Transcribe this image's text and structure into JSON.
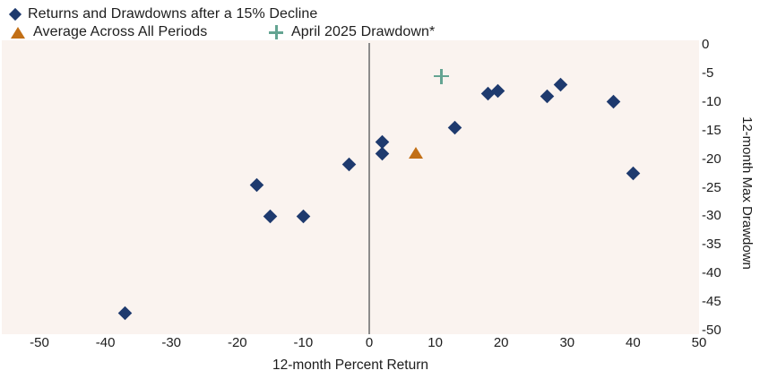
{
  "legend": {
    "returns_label": "Returns and Drawdowns after a 15% Decline",
    "average_label": "Average Across All Periods",
    "april_label": "April 2025 Drawdown*"
  },
  "colors": {
    "navy": "#1e3a6e",
    "orange": "#c26f16",
    "teal": "#64a492",
    "plot_background": "#faf3ef",
    "axis_line": "#8c8c8c",
    "text": "#1d1d1d"
  },
  "chart_data": {
    "type": "scatter",
    "title": "",
    "xlabel": "12-month Percent Return",
    "ylabel": "12-month Max Drawdown",
    "xlim": [
      -50,
      50
    ],
    "ylim": [
      -50,
      0
    ],
    "x_ticks": [
      -50,
      -40,
      -30,
      -20,
      -10,
      0,
      10,
      20,
      30,
      40,
      50
    ],
    "y_ticks": [
      0,
      -5,
      -10,
      -15,
      -20,
      -25,
      -30,
      -35,
      -40,
      -45,
      -50
    ],
    "grid": false,
    "legend_position": "top-left",
    "zero_x_reference_line": true,
    "series": [
      {
        "name": "Returns and Drawdowns after a 15% Decline",
        "marker": "diamond",
        "color": "#1e3a6e",
        "points": [
          [
            -37,
            -47
          ],
          [
            -17,
            -24.5
          ],
          [
            -15,
            -30
          ],
          [
            -10,
            -30
          ],
          [
            -3,
            -21
          ],
          [
            2,
            -17
          ],
          [
            2,
            -19
          ],
          [
            13,
            -14.5
          ],
          [
            18,
            -8.5
          ],
          [
            19.5,
            -8
          ],
          [
            27,
            -9
          ],
          [
            29,
            -7
          ],
          [
            37,
            -10
          ],
          [
            40,
            -22.5
          ]
        ]
      },
      {
        "name": "Average Across All Periods",
        "marker": "triangle",
        "color": "#c26f16",
        "points": [
          [
            7,
            -19
          ]
        ]
      },
      {
        "name": "April 2025 Drawdown*",
        "marker": "plus",
        "color": "#64a492",
        "points": [
          [
            11,
            -5.5
          ]
        ]
      }
    ]
  }
}
